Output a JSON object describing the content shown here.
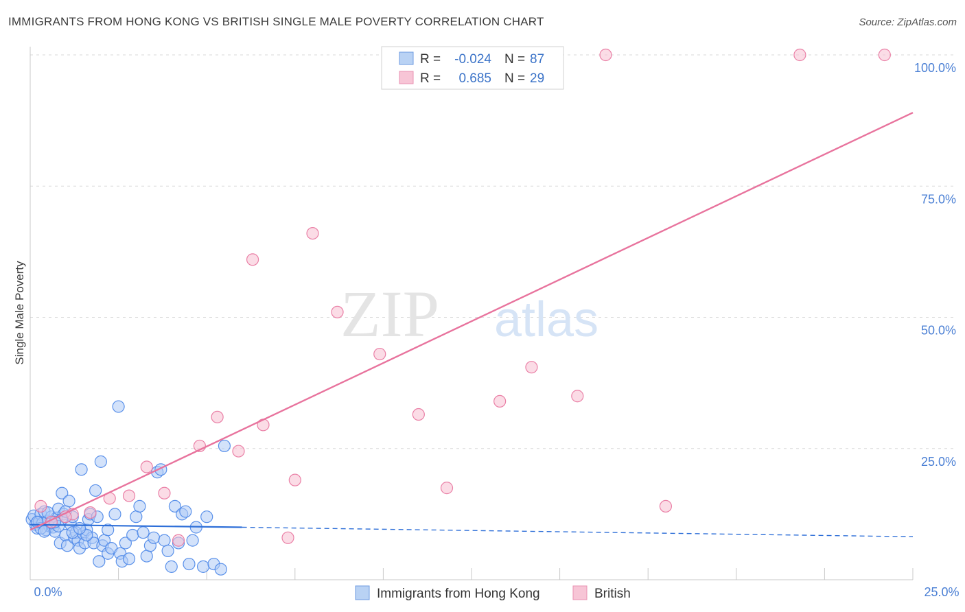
{
  "header": {
    "title": "IMMIGRANTS FROM HONG KONG VS BRITISH SINGLE MALE POVERTY CORRELATION CHART",
    "source": "Source: ZipAtlas.com"
  },
  "colors": {
    "blue": "#4a86e8",
    "blue_fill": "#aecbf5",
    "pink": "#e8739d",
    "pink_fill": "#f7bfd2",
    "tick": "#4a7fd4",
    "grid": "#d9d9d9"
  },
  "watermark": {
    "zip": "ZIP",
    "atlas": "atlas"
  },
  "legend": {
    "rows": [
      {
        "r_label": "R =",
        "r_value": "-0.024",
        "n_label": "N =",
        "n_value": "87"
      },
      {
        "r_label": "R =",
        "r_value": "0.685",
        "n_label": "N =",
        "n_value": "29"
      }
    ]
  },
  "chart_data": {
    "type": "scatter",
    "title": "IMMIGRANTS FROM HONG KONG VS BRITISH SINGLE MALE POVERTY CORRELATION CHART",
    "xlabel": "",
    "ylabel": "Single Male Poverty",
    "xlim": [
      0,
      25
    ],
    "ylim": [
      0,
      102
    ],
    "x_tick_labels": [
      "0.0%",
      "25.0%"
    ],
    "y_ticks": [
      25,
      50,
      75,
      100
    ],
    "y_tick_labels": [
      "25.0%",
      "50.0%",
      "75.0%",
      "100.0%"
    ],
    "series": [
      {
        "name": "Immigrants from Hong Kong",
        "trend": {
          "x": [
            0,
            6,
            25
          ],
          "y": [
            10.5,
            10.0,
            8.2
          ],
          "solid_until": 6
        },
        "points": [
          [
            0.05,
            11.5
          ],
          [
            0.1,
            12.2
          ],
          [
            0.15,
            10.5
          ],
          [
            0.2,
            9.8
          ],
          [
            0.25,
            11.0
          ],
          [
            0.3,
            12.5
          ],
          [
            0.35,
            10.8
          ],
          [
            0.4,
            13.0
          ],
          [
            0.45,
            9.5
          ],
          [
            0.5,
            11.2
          ],
          [
            0.55,
            10.2
          ],
          [
            0.6,
            12.0
          ],
          [
            0.65,
            10.0
          ],
          [
            0.7,
            9.2
          ],
          [
            0.75,
            11.8
          ],
          [
            0.8,
            13.5
          ],
          [
            0.85,
            7.0
          ],
          [
            0.9,
            16.5
          ],
          [
            0.95,
            12.5
          ],
          [
            1.0,
            8.5
          ],
          [
            1.05,
            6.5
          ],
          [
            1.1,
            15.0
          ],
          [
            1.15,
            10.5
          ],
          [
            1.2,
            12.0
          ],
          [
            1.25,
            8.0
          ],
          [
            1.3,
            9.0
          ],
          [
            1.35,
            7.5
          ],
          [
            1.4,
            6.0
          ],
          [
            1.45,
            21.0
          ],
          [
            1.5,
            8.8
          ],
          [
            1.55,
            7.0
          ],
          [
            1.6,
            9.5
          ],
          [
            1.65,
            11.5
          ],
          [
            1.7,
            12.5
          ],
          [
            1.75,
            8.0
          ],
          [
            1.8,
            7.0
          ],
          [
            1.85,
            17.0
          ],
          [
            1.9,
            12.0
          ],
          [
            1.95,
            3.5
          ],
          [
            2.0,
            22.5
          ],
          [
            2.05,
            6.5
          ],
          [
            2.1,
            7.5
          ],
          [
            2.2,
            5.0
          ],
          [
            2.3,
            6.0
          ],
          [
            2.4,
            12.5
          ],
          [
            2.5,
            33.0
          ],
          [
            2.55,
            5.0
          ],
          [
            2.6,
            3.5
          ],
          [
            2.7,
            7.0
          ],
          [
            2.8,
            4.0
          ],
          [
            2.9,
            8.5
          ],
          [
            3.0,
            12.0
          ],
          [
            3.1,
            14.0
          ],
          [
            3.2,
            9.0
          ],
          [
            3.3,
            4.5
          ],
          [
            3.4,
            6.5
          ],
          [
            3.5,
            8.0
          ],
          [
            3.6,
            20.5
          ],
          [
            3.7,
            21.0
          ],
          [
            3.8,
            7.5
          ],
          [
            3.9,
            5.5
          ],
          [
            4.0,
            2.5
          ],
          [
            4.1,
            14.0
          ],
          [
            4.2,
            7.0
          ],
          [
            4.3,
            12.5
          ],
          [
            4.4,
            13.0
          ],
          [
            4.5,
            3.0
          ],
          [
            4.6,
            7.5
          ],
          [
            4.7,
            10.0
          ],
          [
            4.9,
            2.5
          ],
          [
            5.0,
            12.0
          ],
          [
            5.2,
            3.0
          ],
          [
            5.4,
            2.0
          ],
          [
            5.5,
            25.5
          ],
          [
            0.3,
            9.8
          ],
          [
            0.6,
            10.8
          ],
          [
            0.9,
            11.5
          ],
          [
            1.2,
            9.0
          ],
          [
            1.6,
            8.5
          ],
          [
            2.2,
            9.5
          ],
          [
            0.2,
            11.0
          ],
          [
            0.5,
            12.8
          ],
          [
            0.8,
            10.2
          ],
          [
            1.0,
            13.0
          ],
          [
            1.4,
            9.8
          ],
          [
            0.4,
            9.2
          ],
          [
            0.7,
            11.0
          ]
        ]
      },
      {
        "name": "British",
        "trend": {
          "x": [
            0,
            25
          ],
          "y": [
            9.5,
            89.0
          ]
        },
        "points": [
          [
            0.3,
            14.0
          ],
          [
            1.2,
            12.5
          ],
          [
            1.7,
            12.8
          ],
          [
            2.25,
            15.5
          ],
          [
            2.8,
            16.0
          ],
          [
            3.3,
            21.5
          ],
          [
            3.8,
            16.5
          ],
          [
            4.2,
            7.5
          ],
          [
            4.8,
            25.5
          ],
          [
            5.3,
            31.0
          ],
          [
            5.9,
            24.5
          ],
          [
            6.3,
            61.0
          ],
          [
            6.6,
            29.5
          ],
          [
            7.3,
            8.0
          ],
          [
            7.5,
            19.0
          ],
          [
            8.0,
            66.0
          ],
          [
            8.7,
            51.0
          ],
          [
            9.9,
            43.0
          ],
          [
            11.0,
            31.5
          ],
          [
            11.8,
            17.5
          ],
          [
            13.3,
            34.0
          ],
          [
            14.2,
            40.5
          ],
          [
            15.5,
            35.0
          ],
          [
            16.3,
            100.0
          ],
          [
            18.0,
            14.0
          ],
          [
            21.8,
            100.0
          ],
          [
            24.2,
            100.0
          ],
          [
            0.6,
            11.0
          ],
          [
            1.0,
            12.0
          ]
        ]
      }
    ]
  },
  "bottom_legend": {
    "items": [
      {
        "label": "Immigrants from Hong Kong"
      },
      {
        "label": "British"
      }
    ]
  }
}
